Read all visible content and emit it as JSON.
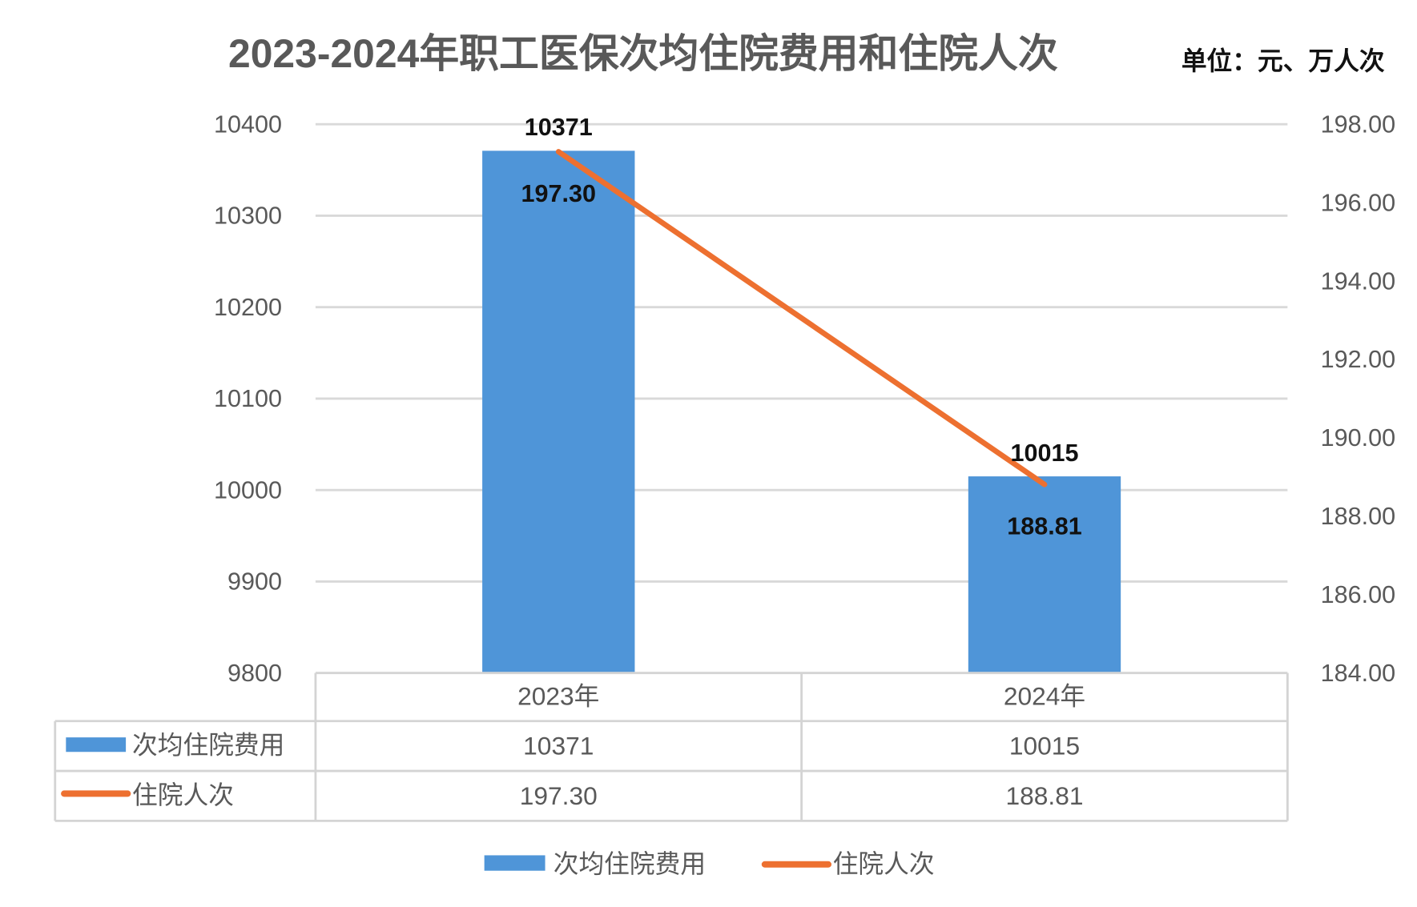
{
  "chart_data": {
    "type": "bar+line",
    "title": "2023-2024年职工医保次均住院费用和住院人次",
    "unit_note": "单位：元、万人次",
    "categories": [
      "2023年",
      "2024年"
    ],
    "series": [
      {
        "name": "次均住院费用",
        "type": "bar",
        "axis": "left",
        "values": [
          10371,
          10015
        ],
        "labels": [
          "10371",
          "10015"
        ],
        "color": "#4f95d8"
      },
      {
        "name": "住院人次",
        "type": "line",
        "axis": "right",
        "values": [
          197.3,
          188.81
        ],
        "labels": [
          "197.30",
          "188.81"
        ],
        "color": "#ed7030"
      }
    ],
    "left_axis": {
      "ylim": [
        9800,
        10400
      ],
      "ticks": [
        "10400",
        "10300",
        "10200",
        "10100",
        "10000",
        "9900",
        "9800"
      ]
    },
    "right_axis": {
      "ylim": [
        184,
        198
      ],
      "ticks": [
        "198.00",
        "196.00",
        "194.00",
        "192.00",
        "190.00",
        "188.00",
        "186.00",
        "184.00"
      ]
    },
    "grid": true,
    "data_table": true,
    "legend_position": "bottom"
  }
}
